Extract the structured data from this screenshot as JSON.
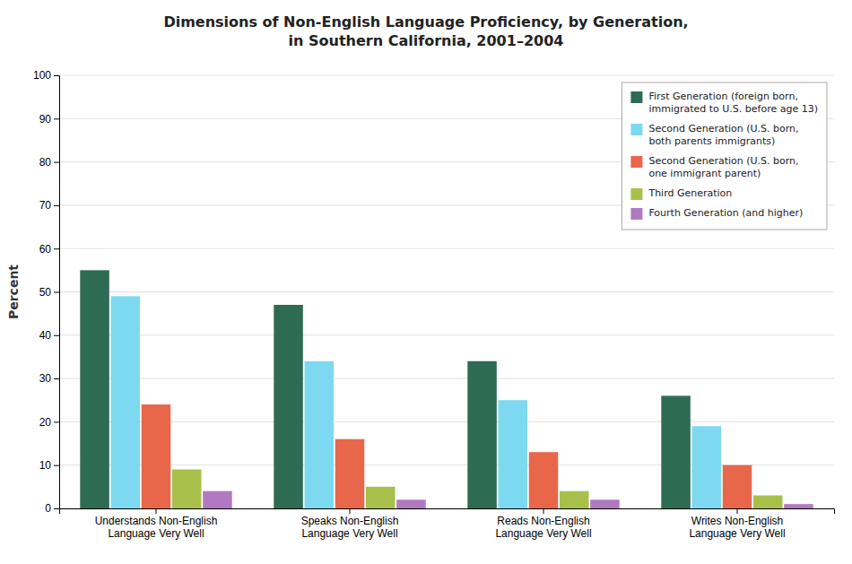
{
  "chart_data": {
    "type": "bar",
    "title": "Dimensions of Non-English Language Proficiency, by Generation,\nin Southern California, 2001–2004",
    "categories": [
      "Understands Non-English\nLanguage Very Well",
      "Speaks Non-English\nLanguage Very Well",
      "Reads Non-English\nLanguage Very Well",
      "Writes Non-English\nLanguage Very Well"
    ],
    "series": [
      {
        "name": "First Generation (foreign born,\nimmigrated to U.S. before age 13)",
        "color": "#2E6B54",
        "values": [
          55,
          47,
          34,
          26
        ]
      },
      {
        "name": "Second Generation (U.S. born,\nboth parents immigrants)",
        "color": "#7DD9F0",
        "values": [
          49,
          34,
          25,
          19
        ]
      },
      {
        "name": "Second Generation (U.S. born,\none immigrant parent)",
        "color": "#E8674A",
        "values": [
          24,
          16,
          13,
          10
        ]
      },
      {
        "name": "Third Generation",
        "color": "#A8C04A",
        "values": [
          9,
          5,
          4,
          3
        ]
      },
      {
        "name": "Fourth Generation (and higher)",
        "color": "#B07AC0",
        "values": [
          4,
          2,
          2,
          1
        ]
      }
    ],
    "ylabel": "Percent",
    "ylim": [
      0,
      100
    ],
    "yticks": [
      0,
      10,
      20,
      30,
      40,
      50,
      60,
      70,
      80,
      90,
      100
    ],
    "grid": true,
    "legend": "upper right"
  }
}
